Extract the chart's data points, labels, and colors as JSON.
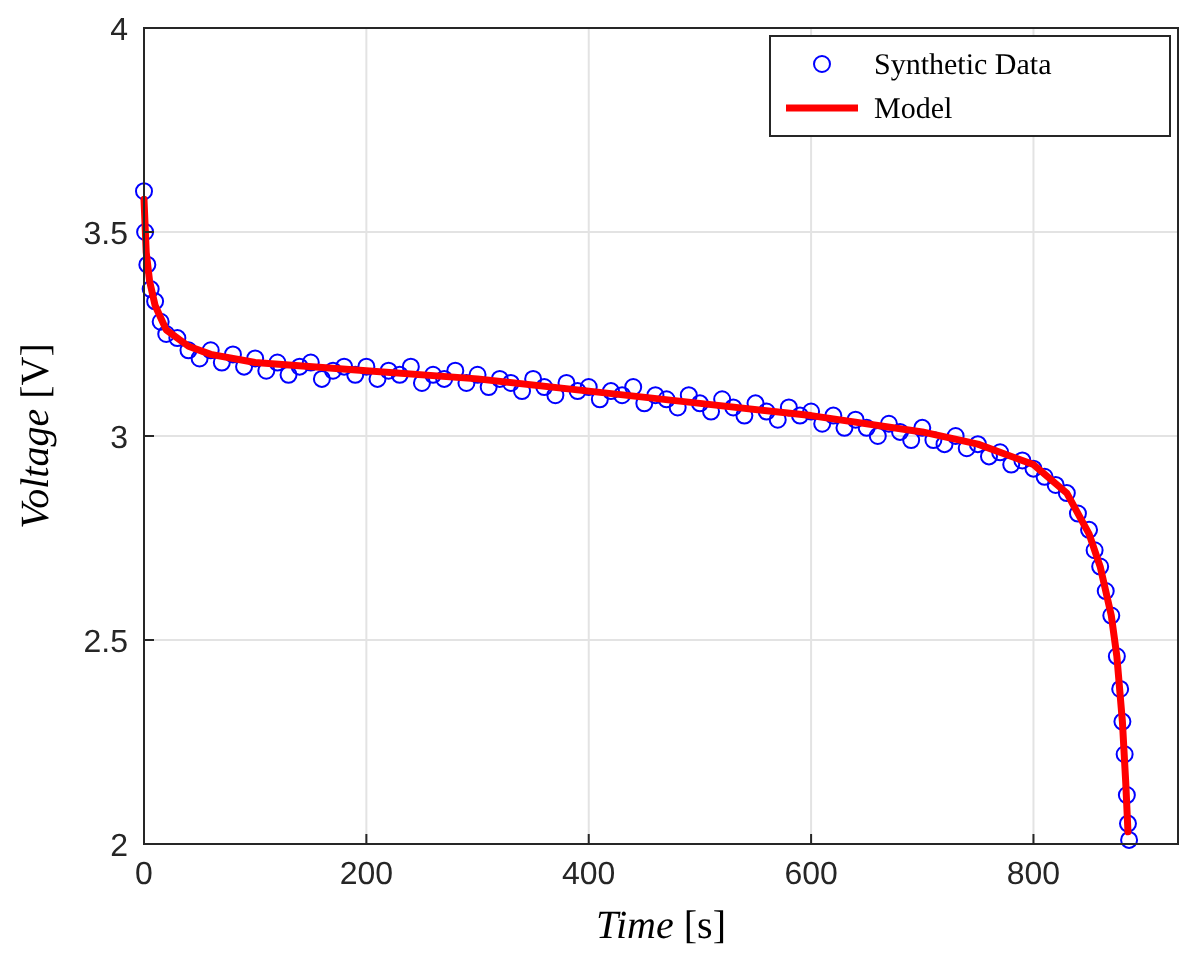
{
  "chart_data": {
    "type": "line",
    "xlabel": "Time [s]",
    "ylabel": "Voltage [V]",
    "xlim": [
      0,
      930
    ],
    "ylim": [
      2,
      4
    ],
    "xticks": [
      0,
      200,
      400,
      600,
      800
    ],
    "yticks": [
      2,
      2.5,
      3,
      3.5,
      4
    ],
    "grid": true,
    "legend": "top right",
    "series": [
      {
        "name": "Synthetic Data",
        "type": "scatter",
        "marker": "circle",
        "color": "#0000ff",
        "x": [
          0,
          1,
          3,
          6,
          10,
          15,
          20,
          30,
          40,
          50,
          60,
          70,
          80,
          90,
          100,
          110,
          120,
          130,
          140,
          150,
          160,
          170,
          180,
          190,
          200,
          210,
          220,
          230,
          240,
          250,
          260,
          270,
          280,
          290,
          300,
          310,
          320,
          330,
          340,
          350,
          360,
          370,
          380,
          390,
          400,
          410,
          420,
          430,
          440,
          450,
          460,
          470,
          480,
          490,
          500,
          510,
          520,
          530,
          540,
          550,
          560,
          570,
          580,
          590,
          600,
          610,
          620,
          630,
          640,
          650,
          660,
          670,
          680,
          690,
          700,
          710,
          720,
          730,
          740,
          750,
          760,
          770,
          780,
          790,
          800,
          810,
          820,
          830,
          840,
          850,
          855,
          860,
          865,
          870,
          875,
          878,
          880,
          882,
          884,
          885,
          886
        ],
        "values": [
          3.6,
          3.5,
          3.42,
          3.36,
          3.33,
          3.28,
          3.25,
          3.24,
          3.21,
          3.19,
          3.21,
          3.18,
          3.2,
          3.17,
          3.19,
          3.16,
          3.18,
          3.15,
          3.17,
          3.18,
          3.14,
          3.16,
          3.17,
          3.15,
          3.17,
          3.14,
          3.16,
          3.15,
          3.17,
          3.13,
          3.15,
          3.14,
          3.16,
          3.13,
          3.15,
          3.12,
          3.14,
          3.13,
          3.11,
          3.14,
          3.12,
          3.1,
          3.13,
          3.11,
          3.12,
          3.09,
          3.11,
          3.1,
          3.12,
          3.08,
          3.1,
          3.09,
          3.07,
          3.1,
          3.08,
          3.06,
          3.09,
          3.07,
          3.05,
          3.08,
          3.06,
          3.04,
          3.07,
          3.05,
          3.06,
          3.03,
          3.05,
          3.02,
          3.04,
          3.02,
          3,
          3.03,
          3.01,
          2.99,
          3.02,
          2.99,
          2.98,
          3,
          2.97,
          2.98,
          2.95,
          2.96,
          2.93,
          2.94,
          2.92,
          2.9,
          2.88,
          2.86,
          2.81,
          2.77,
          2.72,
          2.68,
          2.62,
          2.56,
          2.46,
          2.38,
          2.3,
          2.22,
          2.12,
          2.05,
          2.01
        ]
      },
      {
        "name": "Model",
        "marker": "none",
        "line_style": "solid",
        "color": "#ff0000",
        "x": [
          0,
          2,
          5,
          10,
          20,
          40,
          60,
          100,
          200,
          300,
          400,
          500,
          600,
          700,
          750,
          800,
          830,
          850,
          860,
          870,
          875,
          880,
          883,
          885
        ],
        "values": [
          3.58,
          3.45,
          3.38,
          3.32,
          3.26,
          3.22,
          3.2,
          3.18,
          3.16,
          3.14,
          3.11,
          3.08,
          3.05,
          3.01,
          2.98,
          2.93,
          2.86,
          2.76,
          2.68,
          2.56,
          2.46,
          2.3,
          2.15,
          2.03
        ]
      }
    ]
  }
}
